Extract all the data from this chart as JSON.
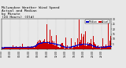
{
  "title": "Milwaukee Weather Wind Speed  Actual and Median  by Minute  (24 Hours) (Old)",
  "background_color": "#e8e8e8",
  "plot_bg_color": "#e8e8e8",
  "bar_color": "#cc0000",
  "dot_color": "#0000cc",
  "num_minutes": 1440,
  "seed": 42,
  "ylim": [
    0,
    30
  ],
  "ytick_values": [
    5,
    10,
    15,
    20,
    25,
    30
  ],
  "legend_actual": "Actual",
  "legend_median": "Median",
  "title_fontsize": 3.2,
  "tick_fontsize": 2.2,
  "legend_fontsize": 2.2,
  "grid_color": "#888888",
  "xtick_interval": 120
}
